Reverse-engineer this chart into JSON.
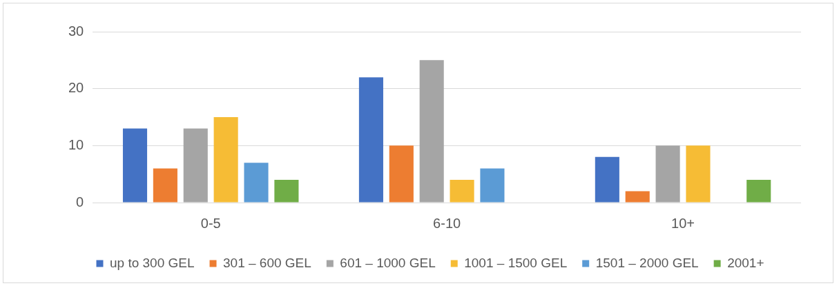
{
  "chart_data": {
    "type": "bar",
    "categories": [
      "0-5",
      "6-10",
      "10+"
    ],
    "series": [
      {
        "name": "up to 300 GEL",
        "color": "#4472c4",
        "values": [
          13,
          22,
          8
        ]
      },
      {
        "name": "301 – 600 GEL",
        "color": "#ed7d31",
        "values": [
          6,
          10,
          2
        ]
      },
      {
        "name": "601 – 1000 GEL",
        "color": "#a5a5a5",
        "values": [
          13,
          25,
          10
        ]
      },
      {
        "name": "1001 – 1500 GEL",
        "color": "#f6bc35",
        "values": [
          15,
          4,
          10
        ]
      },
      {
        "name": "1501 – 2000 GEL",
        "color": "#5b9bd5",
        "values": [
          7,
          6,
          null
        ]
      },
      {
        "name": "2001+",
        "color": "#70ad47",
        "values": [
          4,
          null,
          4
        ]
      }
    ],
    "ylim": [
      0,
      30
    ],
    "yticks": [
      0,
      10,
      20,
      30
    ],
    "grid": "y",
    "legend": "bottom"
  }
}
